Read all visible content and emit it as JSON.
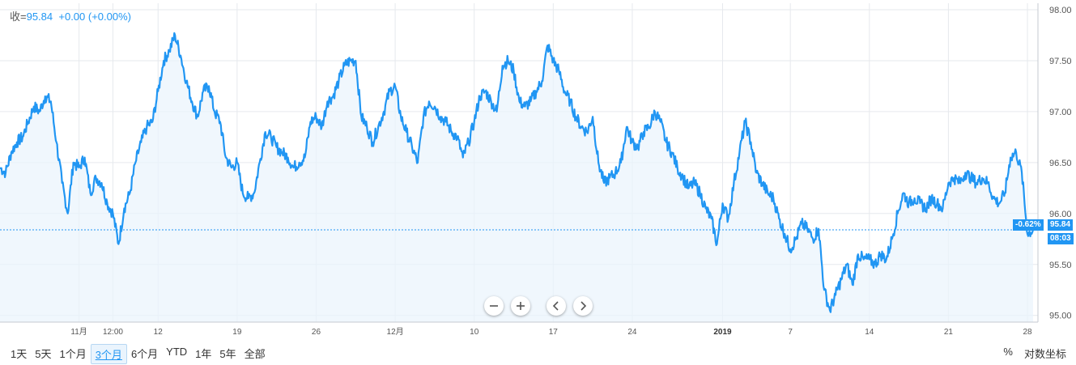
{
  "legend": {
    "prefix": "收=",
    "price": "95.84",
    "change": "+0.00 (+0.00%)"
  },
  "tags": {
    "change_pct": "-0.62%",
    "last_price": "95.84",
    "last_time": "08:03"
  },
  "controls": {
    "zoom_out_icon": "minus-icon",
    "zoom_in_icon": "plus-icon",
    "prev_icon": "chevron-left-icon",
    "next_icon": "chevron-right-icon"
  },
  "ranges": [
    "1天",
    "5天",
    "1个月",
    "3个月",
    "6个月",
    "YTD",
    "1年",
    "5年",
    "全部"
  ],
  "active_range": "3个月",
  "right_options": {
    "percent": "%",
    "log_scale": "对数坐标"
  },
  "colors": {
    "line": "#2196f3",
    "fill": "#e9f3fc",
    "tag_bg": "#2196f3",
    "grid": "#e6e9ed"
  },
  "chart_data": {
    "type": "line",
    "title": "",
    "xlabel": "",
    "ylabel": "",
    "ylim": [
      94.95,
      98.0
    ],
    "y_ticks": [
      "95.00",
      "95.50",
      "96.00",
      "96.50",
      "97.00",
      "97.50",
      "98.00"
    ],
    "x_ticks": [
      {
        "label": "11月",
        "x": 7
      },
      {
        "label": "12:00",
        "x": 10
      },
      {
        "label": "12",
        "x": 14
      },
      {
        "label": "19",
        "x": 21
      },
      {
        "label": "26",
        "x": 28
      },
      {
        "label": "12月",
        "x": 35
      },
      {
        "label": "10",
        "x": 42
      },
      {
        "label": "17",
        "x": 49
      },
      {
        "label": "24",
        "x": 56
      },
      {
        "label": "2019",
        "x": 64,
        "bold": true
      },
      {
        "label": "7",
        "x": 70
      },
      {
        "label": "14",
        "x": 77
      },
      {
        "label": "21",
        "x": 84
      },
      {
        "label": "28",
        "x": 91
      }
    ],
    "x_range": [
      0,
      91.5
    ],
    "reference_line": 95.84,
    "grid": true,
    "series": [
      {
        "points": [
          [
            0,
            96.45
          ],
          [
            0.5,
            96.4
          ],
          [
            1,
            96.6
          ],
          [
            1.5,
            96.7
          ],
          [
            2,
            96.75
          ],
          [
            2.5,
            96.9
          ],
          [
            3,
            97.05
          ],
          [
            3.5,
            97.0
          ],
          [
            4,
            97.15
          ],
          [
            4.5,
            97.1
          ],
          [
            5,
            96.7
          ],
          [
            5.5,
            96.3
          ],
          [
            6,
            96.0
          ],
          [
            6.5,
            96.5
          ],
          [
            7,
            96.45
          ],
          [
            7.5,
            96.55
          ],
          [
            8,
            96.2
          ],
          [
            8.5,
            96.35
          ],
          [
            9,
            96.3
          ],
          [
            9.5,
            96.1
          ],
          [
            10,
            96.0
          ],
          [
            10.5,
            95.7
          ],
          [
            11,
            96.05
          ],
          [
            11.5,
            96.2
          ],
          [
            12,
            96.5
          ],
          [
            12.5,
            96.7
          ],
          [
            13,
            96.85
          ],
          [
            13.5,
            96.9
          ],
          [
            14,
            97.2
          ],
          [
            14.5,
            97.5
          ],
          [
            15,
            97.6
          ],
          [
            15.5,
            97.75
          ],
          [
            16,
            97.55
          ],
          [
            16.5,
            97.3
          ],
          [
            17,
            97.1
          ],
          [
            17.5,
            96.95
          ],
          [
            18,
            97.2
          ],
          [
            18.5,
            97.25
          ],
          [
            19,
            97.0
          ],
          [
            19.5,
            96.9
          ],
          [
            20,
            96.55
          ],
          [
            20.5,
            96.45
          ],
          [
            21,
            96.5
          ],
          [
            21.5,
            96.2
          ],
          [
            22,
            96.15
          ],
          [
            22.5,
            96.2
          ],
          [
            23,
            96.5
          ],
          [
            23.5,
            96.8
          ],
          [
            24,
            96.75
          ],
          [
            24.5,
            96.65
          ],
          [
            25,
            96.6
          ],
          [
            25.5,
            96.55
          ],
          [
            26,
            96.45
          ],
          [
            26.5,
            96.5
          ],
          [
            27,
            96.55
          ],
          [
            27.5,
            96.9
          ],
          [
            28,
            96.95
          ],
          [
            28.5,
            96.85
          ],
          [
            29,
            97.1
          ],
          [
            29.5,
            97.15
          ],
          [
            30,
            97.3
          ],
          [
            30.5,
            97.45
          ],
          [
            31,
            97.5
          ],
          [
            31.5,
            97.5
          ],
          [
            32,
            96.95
          ],
          [
            32.5,
            96.85
          ],
          [
            33,
            96.7
          ],
          [
            33.5,
            96.85
          ],
          [
            34,
            97.0
          ],
          [
            34.5,
            97.2
          ],
          [
            35,
            97.25
          ],
          [
            35.5,
            96.95
          ],
          [
            36,
            96.8
          ],
          [
            36.5,
            96.65
          ],
          [
            37,
            96.5
          ],
          [
            37.5,
            96.95
          ],
          [
            38,
            97.1
          ],
          [
            38.5,
            97.05
          ],
          [
            39,
            96.95
          ],
          [
            39.5,
            96.9
          ],
          [
            40,
            96.8
          ],
          [
            40.5,
            96.75
          ],
          [
            41,
            96.55
          ],
          [
            41.5,
            96.7
          ],
          [
            42,
            96.9
          ],
          [
            42.5,
            97.15
          ],
          [
            43,
            97.2
          ],
          [
            43.5,
            97.1
          ],
          [
            44,
            97.0
          ],
          [
            44.5,
            97.45
          ],
          [
            45,
            97.5
          ],
          [
            45.5,
            97.4
          ],
          [
            46,
            97.1
          ],
          [
            46.5,
            97.05
          ],
          [
            47,
            97.1
          ],
          [
            47.5,
            97.2
          ],
          [
            48,
            97.3
          ],
          [
            48.5,
            97.65
          ],
          [
            49,
            97.5
          ],
          [
            49.5,
            97.4
          ],
          [
            50,
            97.2
          ],
          [
            50.5,
            97.1
          ],
          [
            51,
            96.95
          ],
          [
            51.5,
            96.85
          ],
          [
            52,
            96.8
          ],
          [
            52.5,
            96.95
          ],
          [
            53,
            96.5
          ],
          [
            53.5,
            96.3
          ],
          [
            54,
            96.35
          ],
          [
            54.5,
            96.4
          ],
          [
            55,
            96.5
          ],
          [
            55.5,
            96.85
          ],
          [
            56,
            96.7
          ],
          [
            56.5,
            96.65
          ],
          [
            57,
            96.8
          ],
          [
            57.5,
            96.85
          ],
          [
            58,
            97.0
          ],
          [
            58.5,
            96.9
          ],
          [
            59,
            96.7
          ],
          [
            59.5,
            96.6
          ],
          [
            60,
            96.45
          ],
          [
            60.5,
            96.35
          ],
          [
            61,
            96.25
          ],
          [
            61.5,
            96.3
          ],
          [
            62,
            96.2
          ],
          [
            62.5,
            96.05
          ],
          [
            63,
            95.95
          ],
          [
            63.5,
            95.7
          ],
          [
            64,
            96.1
          ],
          [
            64.5,
            95.95
          ],
          [
            65,
            96.3
          ],
          [
            65.5,
            96.6
          ],
          [
            66,
            96.9
          ],
          [
            66.5,
            96.7
          ],
          [
            67,
            96.4
          ],
          [
            67.5,
            96.3
          ],
          [
            68,
            96.2
          ],
          [
            68.5,
            96.15
          ],
          [
            69,
            95.95
          ],
          [
            69.5,
            95.8
          ],
          [
            70,
            95.65
          ],
          [
            70.5,
            95.75
          ],
          [
            71,
            95.9
          ],
          [
            71.5,
            95.85
          ],
          [
            72,
            95.75
          ],
          [
            72.5,
            95.85
          ],
          [
            73,
            95.25
          ],
          [
            73.5,
            95.05
          ],
          [
            74,
            95.2
          ],
          [
            74.5,
            95.35
          ],
          [
            75,
            95.5
          ],
          [
            75.5,
            95.3
          ],
          [
            76,
            95.6
          ],
          [
            76.5,
            95.55
          ],
          [
            77,
            95.55
          ],
          [
            77.5,
            95.5
          ],
          [
            78,
            95.6
          ],
          [
            78.5,
            95.55
          ],
          [
            79,
            95.75
          ],
          [
            79.5,
            96.0
          ],
          [
            80,
            96.2
          ],
          [
            80.5,
            96.1
          ],
          [
            81,
            96.15
          ],
          [
            81.5,
            96.1
          ],
          [
            82,
            96.05
          ],
          [
            82.5,
            96.15
          ],
          [
            83,
            96.1
          ],
          [
            83.5,
            96.05
          ],
          [
            84,
            96.3
          ],
          [
            84.5,
            96.35
          ],
          [
            85,
            96.3
          ],
          [
            85.5,
            96.4
          ],
          [
            86,
            96.35
          ],
          [
            86.5,
            96.3
          ],
          [
            87,
            96.35
          ],
          [
            87.5,
            96.3
          ],
          [
            88,
            96.15
          ],
          [
            88.5,
            96.1
          ],
          [
            89,
            96.2
          ],
          [
            89.5,
            96.55
          ],
          [
            90,
            96.6
          ],
          [
            90.5,
            96.4
          ],
          [
            91,
            95.8
          ],
          [
            91.5,
            95.84
          ]
        ]
      }
    ]
  }
}
